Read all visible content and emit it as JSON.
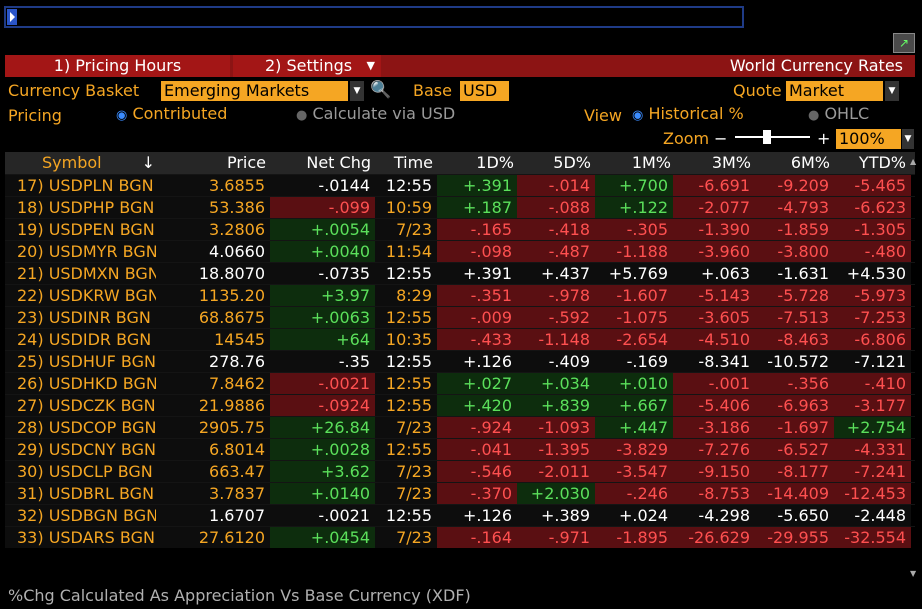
{
  "toolbar": {
    "pricing_hours": "1) Pricing Hours",
    "settings": "2) Settings",
    "title": "World Currency Rates"
  },
  "controls": {
    "currency_basket_label": "Currency Basket",
    "currency_basket_value": "Emerging Markets",
    "base_label": "Base",
    "base_value": "USD",
    "quote_label": "Quote",
    "quote_value": "Market",
    "pricing_label": "Pricing",
    "pricing_contributed": "Contributed",
    "pricing_calc": "Calculate via USD",
    "view_label": "View",
    "view_historical": "Historical %",
    "view_ohlc": "OHLC",
    "zoom_label": "Zoom",
    "zoom_minus": "−",
    "zoom_plus": "+",
    "zoom_value": "100%"
  },
  "table": {
    "headers": {
      "symbol": "Symbol",
      "sort": "↓",
      "price": "Price",
      "netchg": "Net Chg",
      "time": "Time",
      "d1": "1D%",
      "d5": "5D%",
      "m1": "1M%",
      "m3": "3M%",
      "m6": "6M%",
      "ytd": "YTD%"
    },
    "rows": [
      {
        "sym": "17) USDPLN BGN",
        "price": "3.6855",
        "netchg": "-.0144",
        "time": "12:55",
        "d1": "+.391",
        "d5": "-.014",
        "m1": "+.700",
        "m3": "-6.691",
        "m6": "-9.209",
        "ytd": "-5.465"
      },
      {
        "sym": "18) USDPHP BGN",
        "price": "53.386",
        "netchg": "-.099",
        "time": "10:59",
        "d1": "+.187",
        "d5": "-.088",
        "m1": "+.122",
        "m3": "-2.077",
        "m6": "-4.793",
        "ytd": "-6.623"
      },
      {
        "sym": "19) USDPEN BGN",
        "price": "3.2806",
        "netchg": "+.0054",
        "time": "7/23",
        "d1": "-.165",
        "d5": "-.418",
        "m1": "-.305",
        "m3": "-1.390",
        "m6": "-1.859",
        "ytd": "-1.305"
      },
      {
        "sym": "20) USDMYR BGN",
        "price": "4.0660",
        "netchg": "+.0040",
        "time": "11:54",
        "d1": "-.098",
        "d5": "-.487",
        "m1": "-1.188",
        "m3": "-3.960",
        "m6": "-3.800",
        "ytd": "-.480"
      },
      {
        "sym": "21) USDMXN BGN",
        "price": "18.8070",
        "netchg": "-.0735",
        "time": "12:55",
        "d1": "+.391",
        "d5": "+.437",
        "m1": "+5.769",
        "m3": "+.063",
        "m6": "-1.631",
        "ytd": "+4.530"
      },
      {
        "sym": "22) USDKRW BGN",
        "price": "1135.20",
        "netchg": "+3.97",
        "time": "8:29",
        "d1": "-.351",
        "d5": "-.978",
        "m1": "-1.607",
        "m3": "-5.143",
        "m6": "-5.728",
        "ytd": "-5.973"
      },
      {
        "sym": "23) USDINR BGN",
        "price": "68.8675",
        "netchg": "+.0063",
        "time": "12:55",
        "d1": "-.009",
        "d5": "-.592",
        "m1": "-1.075",
        "m3": "-3.605",
        "m6": "-7.513",
        "ytd": "-7.253"
      },
      {
        "sym": "24) USDIDR BGN",
        "price": "14545",
        "netchg": "+64",
        "time": "10:35",
        "d1": "-.433",
        "d5": "-1.148",
        "m1": "-2.654",
        "m3": "-4.510",
        "m6": "-8.463",
        "ytd": "-6.806"
      },
      {
        "sym": "25) USDHUF BGN",
        "price": "278.76",
        "netchg": "-.35",
        "time": "12:55",
        "d1": "+.126",
        "d5": "-.409",
        "m1": "-.169",
        "m3": "-8.341",
        "m6": "-10.572",
        "ytd": "-7.121"
      },
      {
        "sym": "26) USDHKD BGN",
        "price": "7.8462",
        "netchg": "-.0021",
        "time": "12:55",
        "d1": "+.027",
        "d5": "+.034",
        "m1": "+.010",
        "m3": "-.001",
        "m6": "-.356",
        "ytd": "-.410"
      },
      {
        "sym": "27) USDCZK BGN",
        "price": "21.9886",
        "netchg": "-.0924",
        "time": "12:55",
        "d1": "+.420",
        "d5": "+.839",
        "m1": "+.667",
        "m3": "-5.406",
        "m6": "-6.963",
        "ytd": "-3.177"
      },
      {
        "sym": "28) USDCOP BGN",
        "price": "2905.75",
        "netchg": "+26.84",
        "time": "7/23",
        "d1": "-.924",
        "d5": "-1.093",
        "m1": "+.447",
        "m3": "-3.186",
        "m6": "-1.697",
        "ytd": "+2.754"
      },
      {
        "sym": "29) USDCNY BGN",
        "price": "6.8014",
        "netchg": "+.0028",
        "time": "12:55",
        "d1": "-.041",
        "d5": "-1.395",
        "m1": "-3.829",
        "m3": "-7.276",
        "m6": "-6.527",
        "ytd": "-4.331"
      },
      {
        "sym": "30) USDCLP BGN",
        "price": "663.47",
        "netchg": "+3.62",
        "time": "7/23",
        "d1": "-.546",
        "d5": "-2.011",
        "m1": "-3.547",
        "m3": "-9.150",
        "m6": "-8.177",
        "ytd": "-7.241"
      },
      {
        "sym": "31) USDBRL BGN",
        "price": "3.7837",
        "netchg": "+.0140",
        "time": "7/23",
        "d1": "-.370",
        "d5": "+2.030",
        "m1": "-.246",
        "m3": "-8.753",
        "m6": "-14.409",
        "ytd": "-12.453"
      },
      {
        "sym": "32) USDBGN BGN",
        "price": "1.6707",
        "netchg": "-.0021",
        "time": "12:55",
        "d1": "+.126",
        "d5": "+.389",
        "m1": "+.024",
        "m3": "-4.298",
        "m6": "-5.650",
        "ytd": "-2.448"
      },
      {
        "sym": "33) USDARS BGN",
        "price": "27.6120",
        "netchg": "+.0454",
        "time": "7/23",
        "d1": "-.164",
        "d5": "-.971",
        "m1": "-1.895",
        "m3": "-26.629",
        "m6": "-29.955",
        "ytd": "-32.554"
      }
    ]
  },
  "footer": "%Chg Calculated As Appreciation Vs Base Currency (XDF)",
  "colors": {
    "accent": "#f5a623",
    "positive": "#5be05b",
    "negative": "#ff5050",
    "header_red": "#8c1414"
  }
}
